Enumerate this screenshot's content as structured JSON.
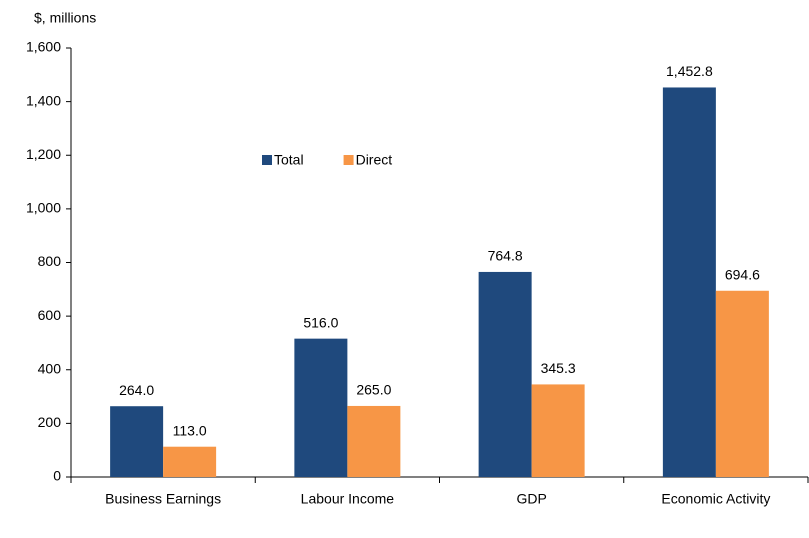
{
  "chart_data": {
    "type": "bar",
    "y_axis_label": "$, millions",
    "categories": [
      "Business Earnings",
      "Labour Income",
      "GDP",
      "Economic Activity"
    ],
    "series": [
      {
        "name": "Total",
        "color": "#1f497d",
        "values": [
          264.0,
          516.0,
          764.8,
          1452.8
        ],
        "value_labels": [
          "264.0",
          "516.0",
          "764.8",
          "1,452.8"
        ]
      },
      {
        "name": "Direct",
        "color": "#f79646",
        "values": [
          113.0,
          265.0,
          345.3,
          694.6
        ],
        "value_labels": [
          "113.0",
          "265.0",
          "345.3",
          "694.6"
        ]
      }
    ],
    "ylim": [
      0,
      1600
    ],
    "yticks": [
      0,
      200,
      400,
      600,
      800,
      {
        "value": 1000,
        "label": "1,000"
      },
      {
        "value": 1200,
        "label": "1,200"
      },
      {
        "value": 1400,
        "label": "1,400"
      },
      {
        "value": 1600,
        "label": "1,600"
      }
    ],
    "grid": false,
    "legend": "top-center"
  }
}
